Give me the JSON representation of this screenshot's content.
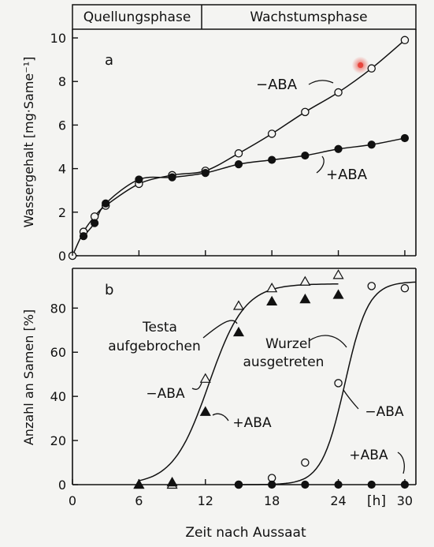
{
  "phase_header": {
    "left": "Quellungsphase",
    "right": "Wachstumsphase"
  },
  "shared_x": {
    "label": "Zeit nach Aussaat",
    "unit": "[h]",
    "ticks": [
      0,
      6,
      12,
      18,
      24,
      30
    ],
    "tick_labels": [
      "0",
      "6",
      "12",
      "18",
      "24",
      "30"
    ],
    "xlim": [
      0,
      31
    ]
  },
  "colors": {
    "ink": "#111111",
    "highlight": "#e8453c",
    "background": "#f4f4f2"
  },
  "chart_data": [
    {
      "type": "line",
      "panel_letter": "a",
      "ylabel": "Wassergehalt [mg·Same⁻¹]",
      "ylim": [
        0,
        10.4
      ],
      "y_ticks": [
        0,
        2,
        4,
        6,
        8,
        10
      ],
      "grid": false,
      "series": [
        {
          "name": "−ABA",
          "marker": "open-circle",
          "x": [
            0,
            1,
            2,
            3,
            6,
            9,
            12,
            15,
            18,
            21,
            24,
            27,
            30
          ],
          "y": [
            0.0,
            1.1,
            1.8,
            2.3,
            3.3,
            3.7,
            3.9,
            4.7,
            5.6,
            6.6,
            7.5,
            8.6,
            9.9
          ]
        },
        {
          "name": "+ABA",
          "marker": "filled-circle",
          "x": [
            1,
            2,
            3,
            6,
            9,
            12,
            15,
            18,
            21,
            24,
            27,
            30
          ],
          "y": [
            0.9,
            1.5,
            2.4,
            3.5,
            3.6,
            3.8,
            4.2,
            4.4,
            4.6,
            4.9,
            5.1,
            5.4
          ]
        }
      ],
      "highlighted_point": {
        "x": 26,
        "y": 8.75
      }
    },
    {
      "type": "scatter",
      "panel_letter": "b",
      "ylabel": "Anzahl an Samen [%]",
      "ylim": [
        0,
        98
      ],
      "y_ticks": [
        0,
        20,
        40,
        60,
        80
      ],
      "grid": false,
      "annotations": {
        "testa": [
          "Testa",
          "aufgebrochen"
        ],
        "wurzel": [
          "Wurzel",
          "ausgetreten"
        ]
      },
      "series": [
        {
          "name": "−ABA",
          "group": "testa",
          "marker": "open-triangle",
          "x": [
            6,
            9,
            12,
            15,
            18,
            21,
            24
          ],
          "y": [
            0,
            0,
            48,
            81,
            89,
            92,
            95
          ]
        },
        {
          "name": "+ABA",
          "group": "testa",
          "marker": "filled-triangle",
          "x": [
            6,
            9,
            12,
            15,
            18,
            21,
            24
          ],
          "y": [
            0,
            1,
            33,
            69,
            83,
            84,
            86
          ]
        },
        {
          "name": "−ABA",
          "group": "wurzel",
          "marker": "open-circle",
          "x": [
            15,
            18,
            21,
            24,
            27,
            30
          ],
          "y": [
            0,
            3,
            10,
            46,
            90,
            89
          ]
        },
        {
          "name": "+ABA",
          "group": "wurzel",
          "marker": "filled-circle",
          "x": [
            15,
            18,
            21,
            24,
            27,
            30
          ],
          "y": [
            0,
            0,
            0,
            0,
            0,
            0
          ]
        }
      ]
    }
  ]
}
